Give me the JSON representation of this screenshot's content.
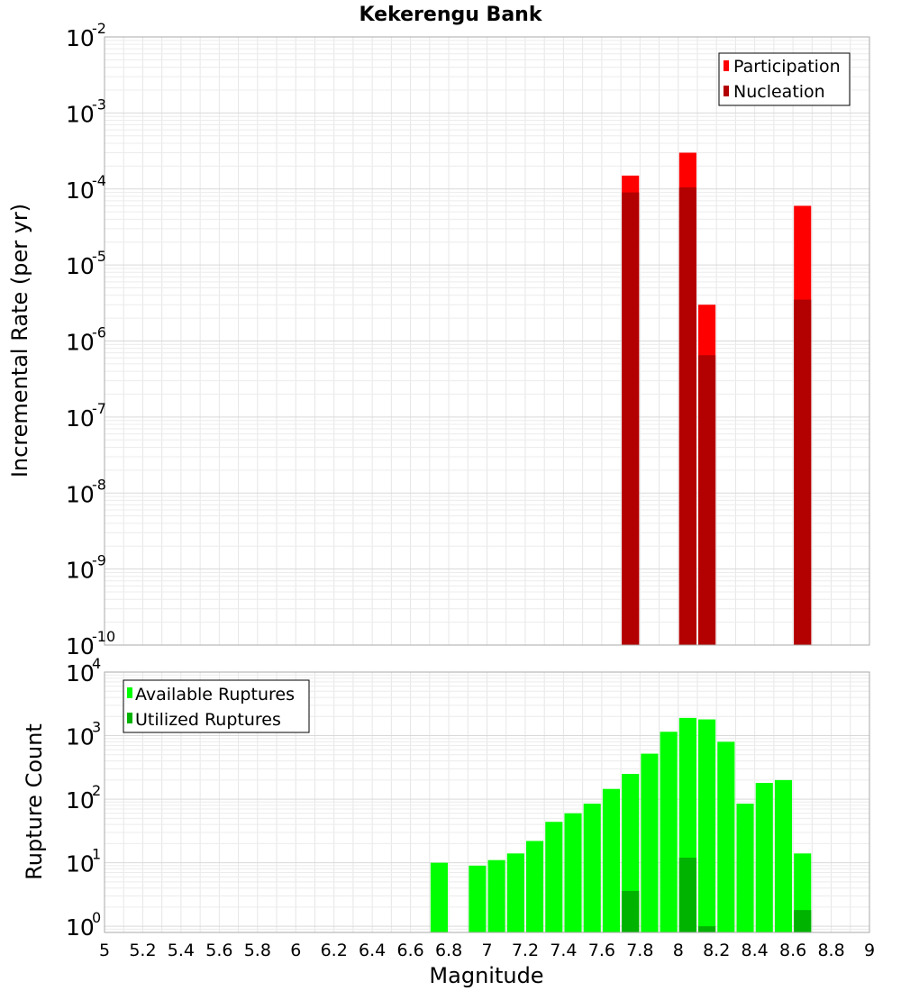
{
  "chart_data": [
    {
      "type": "bar",
      "title": "Kekerengu Bank",
      "xlabel": "",
      "ylabel": "Incremental Rate (per yr)",
      "yscale": "log",
      "xlim": [
        5,
        9
      ],
      "ylim": [
        1e-10,
        0.01
      ],
      "y_ticks": [
        {
          "base": "10",
          "exp": "-10",
          "value": 1e-10
        },
        {
          "base": "10",
          "exp": "-9",
          "value": 1e-09
        },
        {
          "base": "10",
          "exp": "-8",
          "value": 1e-08
        },
        {
          "base": "10",
          "exp": "-7",
          "value": 1e-07
        },
        {
          "base": "10",
          "exp": "-6",
          "value": 1e-06
        },
        {
          "base": "10",
          "exp": "-5",
          "value": 1e-05
        },
        {
          "base": "10",
          "exp": "-4",
          "value": 0.0001
        },
        {
          "base": "10",
          "exp": "-3",
          "value": 0.001
        },
        {
          "base": "10",
          "exp": "-2",
          "value": 0.01
        }
      ],
      "grid": true,
      "legend_position": "top-right",
      "series": [
        {
          "name": "Participation",
          "color": "#ff0000",
          "x": [
            7.75,
            8.05,
            8.15,
            8.65
          ],
          "values": [
            0.00015,
            0.0003,
            3e-06,
            6e-05
          ]
        },
        {
          "name": "Nucleation",
          "color": "#b30000",
          "x": [
            7.75,
            8.05,
            8.15,
            8.65
          ],
          "values": [
            9e-05,
            0.000105,
            6.5e-07,
            3.5e-06
          ]
        }
      ]
    },
    {
      "type": "bar",
      "title": "",
      "xlabel": "Magnitude",
      "ylabel": "Rupture Count",
      "yscale": "log",
      "xlim": [
        5,
        9
      ],
      "ylim": [
        0.8,
        10000.0
      ],
      "y_ticks": [
        {
          "base": "10",
          "exp": "0",
          "value": 1
        },
        {
          "base": "10",
          "exp": "1",
          "value": 10
        },
        {
          "base": "10",
          "exp": "2",
          "value": 100
        },
        {
          "base": "10",
          "exp": "3",
          "value": 1000
        },
        {
          "base": "10",
          "exp": "4",
          "value": 10000
        }
      ],
      "x_ticks": [
        "5",
        "5.2",
        "5.4",
        "5.6",
        "5.8",
        "6",
        "6.2",
        "6.4",
        "6.6",
        "6.8",
        "7",
        "7.2",
        "7.4",
        "7.6",
        "7.8",
        "8",
        "8.2",
        "8.4",
        "8.6",
        "8.8",
        "9"
      ],
      "grid": true,
      "legend_position": "top-left",
      "series": [
        {
          "name": "Available Ruptures",
          "color": "#00ff00",
          "x": [
            6.75,
            6.95,
            7.05,
            7.15,
            7.25,
            7.35,
            7.45,
            7.55,
            7.65,
            7.75,
            7.85,
            7.95,
            8.05,
            8.15,
            8.25,
            8.35,
            8.45,
            8.55,
            8.65
          ],
          "values": [
            10,
            9,
            11,
            14,
            22,
            44,
            60,
            85,
            145,
            250,
            520,
            1150,
            1900,
            1800,
            800,
            85,
            180,
            200,
            14
          ]
        },
        {
          "name": "Utilized Ruptures",
          "color": "#00b300",
          "x": [
            7.75,
            8.05,
            8.15,
            8.65
          ],
          "values": [
            3.6,
            12,
            1,
            1.8
          ]
        }
      ]
    }
  ]
}
